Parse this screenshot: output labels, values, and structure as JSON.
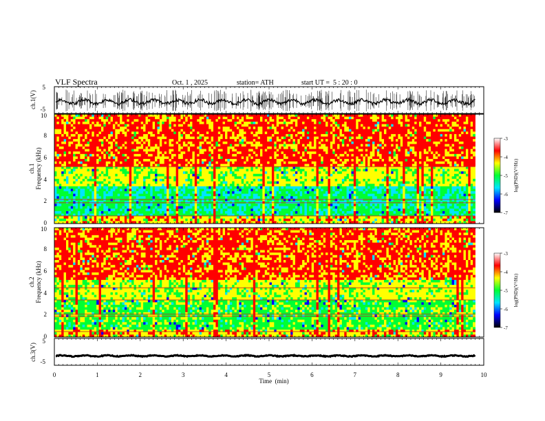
{
  "chart_data": [
    {
      "type": "line",
      "panel": "ch1-waveform",
      "title": "VLF Spectra",
      "date": "Oct. 1 , 2025",
      "station": "station= ATH",
      "start_ut": "start UT =  5 : 20 : 0",
      "ylabel": "ch.1(V)",
      "ylim": [
        -5,
        5
      ],
      "yticks": [
        "5",
        "-5"
      ],
      "xlim": [
        0,
        10
      ],
      "series": [
        {
          "name": "ch.1",
          "mean": -0.6,
          "amplitude": 1.2,
          "spike_amplitude": 4.5
        }
      ]
    },
    {
      "type": "heatmap",
      "panel": "ch1-spectrogram",
      "ylabel_top": "ch.1",
      "ylabel": "Frequency (kHz)",
      "ylim": [
        0,
        10
      ],
      "yticks": [
        "0",
        "2",
        "4",
        "6",
        "8",
        "10"
      ],
      "xlim": [
        0,
        10
      ],
      "data_end_min": 9.8,
      "colorbar": {
        "label": "log(PSD)(V²/Hz)",
        "range": [
          -7,
          -3
        ],
        "ticks": [
          "-3",
          "-4",
          "-5",
          "-6",
          "-7"
        ],
        "colors": [
          "#000000",
          "#0000ff",
          "#00e5ff",
          "#00ff33",
          "#ffff00",
          "#ff0000",
          "#ffffff"
        ]
      }
    },
    {
      "type": "heatmap",
      "panel": "ch2-spectrogram",
      "ylabel_top": "ch.2",
      "ylabel": "Frequency (kHz)",
      "ylim": [
        0,
        10
      ],
      "yticks": [
        "0",
        "2",
        "4",
        "6",
        "8",
        "10"
      ],
      "xlim": [
        0,
        10
      ],
      "data_end_min": 9.8,
      "colorbar": {
        "label": "log(PSD)(V²/Hz)",
        "range": [
          -7,
          -3
        ],
        "ticks": [
          "-3",
          "-4",
          "-5",
          "-6",
          "-7"
        ],
        "colors": [
          "#000000",
          "#0000ff",
          "#00e5ff",
          "#00ff33",
          "#ffff00",
          "#ff0000",
          "#ffffff"
        ]
      }
    },
    {
      "type": "line",
      "panel": "ch3-waveform",
      "ylabel": "ch.3(V)",
      "ylim": [
        -5,
        5
      ],
      "yticks": [
        "5",
        "-5"
      ],
      "xlim": [
        0,
        10
      ],
      "xlabel": "Time  (min)",
      "xticks": [
        "0",
        "1",
        "2",
        "3",
        "4",
        "5",
        "6",
        "7",
        "8",
        "9",
        "10"
      ],
      "series": [
        {
          "name": "ch.3",
          "mean": -1.5,
          "amplitude": 0.3
        }
      ]
    }
  ]
}
